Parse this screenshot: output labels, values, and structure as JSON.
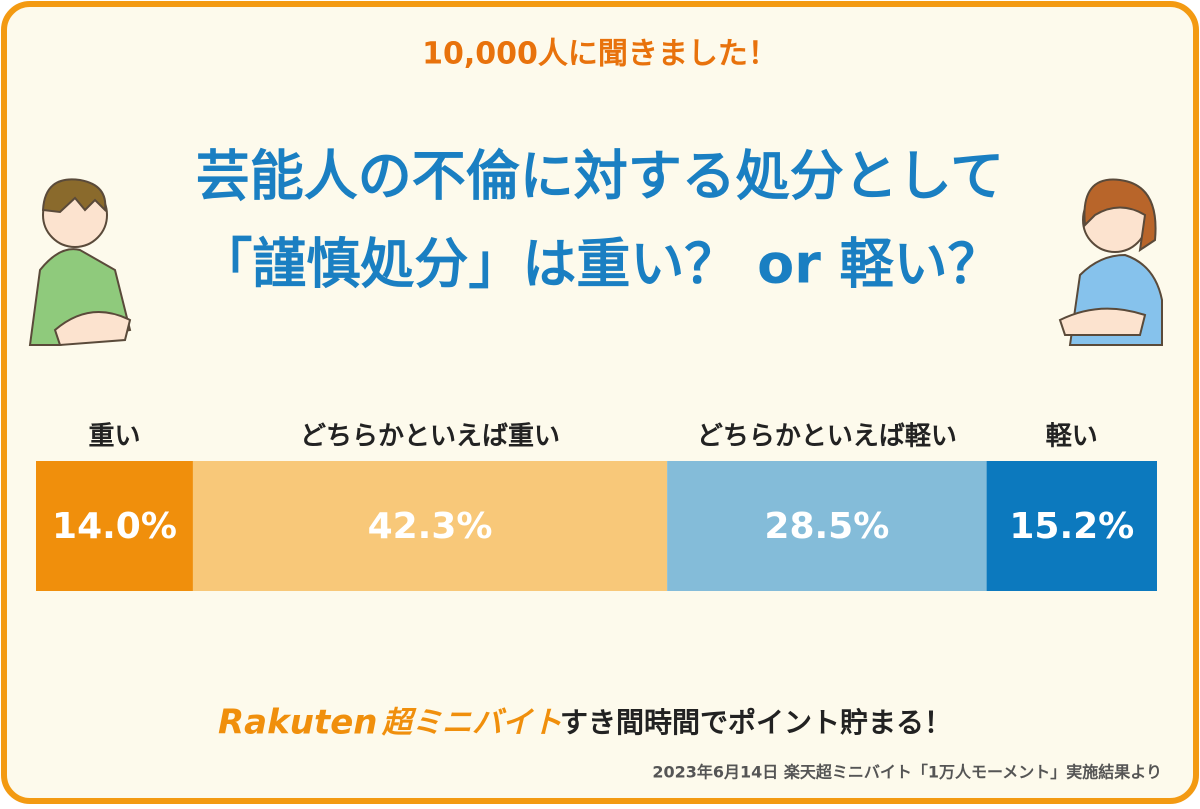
{
  "chart_data": {
    "type": "stacked-bar",
    "subtitle": "10,000人に聞きました！",
    "title": [
      "芸能人の不倫に対する処分として",
      "「謹慎処分」は重い？ or 軽い？"
    ],
    "xlim": [
      0,
      100
    ],
    "series": [
      {
        "name": "重い",
        "color": "#f08f0c",
        "values": [
          14.0
        ],
        "value_labels": [
          "14.0%"
        ]
      },
      {
        "name": "どちらかといえば重い",
        "color": "#f8c879",
        "values": [
          42.3
        ],
        "value_labels": [
          "42.3%"
        ]
      },
      {
        "name": "どちらかといえば軽い",
        "color": "#84bcd9",
        "values": [
          28.5
        ],
        "value_labels": [
          "28.5%"
        ]
      },
      {
        "name": "軽い",
        "color": "#0c79be",
        "values": [
          15.2
        ],
        "value_labels": [
          "15.2%"
        ]
      }
    ],
    "annotations": {
      "brand": "Rakuten",
      "service": "超ミニバイト",
      "tagline": "すき間時間でポイント貯まる！",
      "source": "2023年6月14日 楽天超ミニバイト「1万人モーメント」実施結果より"
    }
  }
}
